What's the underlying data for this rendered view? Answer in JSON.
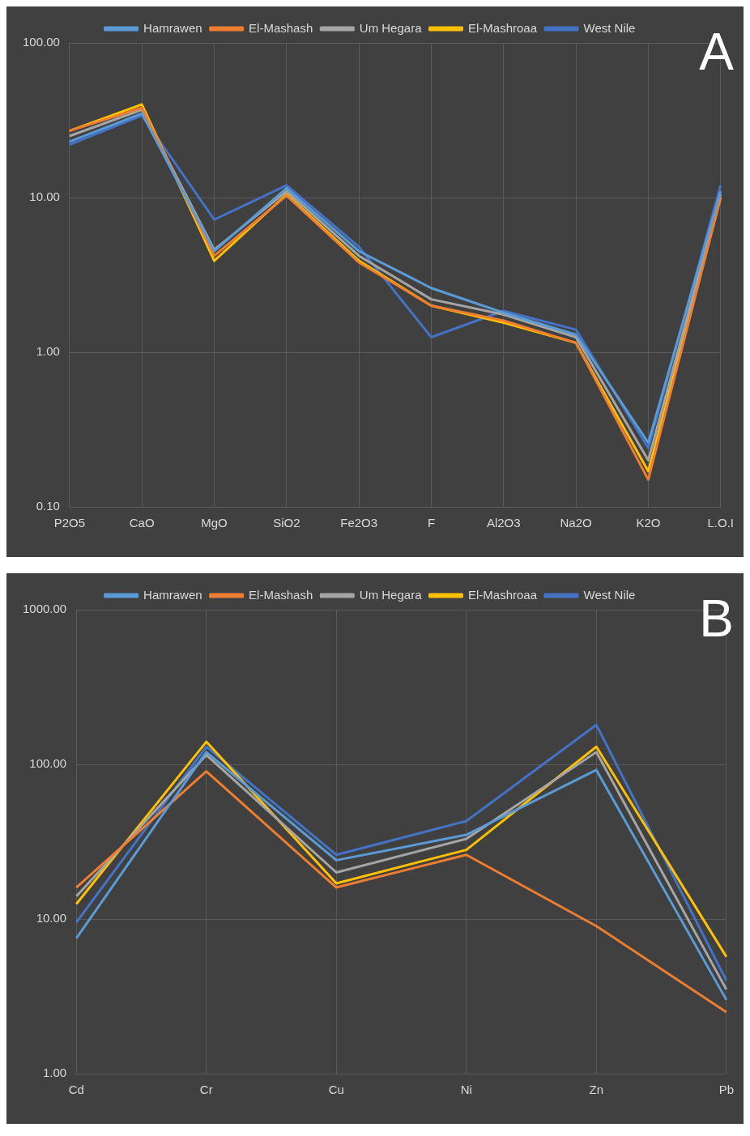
{
  "chart_data": [
    {
      "type": "line",
      "annotations": [
        "A"
      ],
      "categories": [
        "P2O5",
        "CaO",
        "MgO",
        "SiO2",
        "Fe2O3",
        "F",
        "Al2O3",
        "Na2O",
        "K2O",
        "L.O.I"
      ],
      "series": [
        {
          "name": "Hamrawen",
          "color": "#5b9bd5",
          "values": [
            23,
            35,
            4.5,
            11.5,
            4.5,
            2.6,
            1.8,
            1.3,
            0.26,
            11
          ]
        },
        {
          "name": "El-Mashash",
          "color": "#ed7d31",
          "values": [
            27,
            38,
            4.2,
            10.3,
            3.8,
            2.0,
            1.6,
            1.15,
            0.15,
            10
          ]
        },
        {
          "name": "Um Hegara",
          "color": "#a5a5a5",
          "values": [
            25,
            37,
            4.6,
            11,
            4.2,
            2.2,
            1.75,
            1.25,
            0.2,
            10.5
          ]
        },
        {
          "name": "El-Mashroaa",
          "color": "#ffc000",
          "values": [
            27,
            40,
            3.9,
            10.5,
            3.9,
            2.0,
            1.55,
            1.15,
            0.17,
            10
          ]
        },
        {
          "name": "West Nile",
          "color": "#4472c4",
          "values": [
            22,
            34,
            7.2,
            12,
            4.8,
            1.25,
            1.85,
            1.4,
            0.24,
            12
          ]
        }
      ],
      "log": "y",
      "ylim": [
        0.1,
        100
      ],
      "yticks": [
        {
          "value": 0.1,
          "label": "0.10"
        },
        {
          "value": 1,
          "label": "1.00"
        },
        {
          "value": 10,
          "label": "10.00"
        },
        {
          "value": 100,
          "label": "100.00"
        }
      ],
      "grid": true,
      "legend": "top"
    },
    {
      "type": "line",
      "annotations": [
        "B"
      ],
      "categories": [
        "Cd",
        "Cr",
        "Cu",
        "Ni",
        "Zn",
        "Pb"
      ],
      "series": [
        {
          "name": "Hamrawen",
          "color": "#5b9bd5",
          "values": [
            7.5,
            120,
            24,
            35,
            92,
            3
          ]
        },
        {
          "name": "El-Mashash",
          "color": "#ed7d31",
          "values": [
            16,
            90,
            16,
            26,
            9,
            2.5
          ]
        },
        {
          "name": "Um Hegara",
          "color": "#a5a5a5",
          "values": [
            14,
            115,
            20,
            33,
            120,
            3.5
          ]
        },
        {
          "name": "El-Mashroaa",
          "color": "#ffc000",
          "values": [
            12.5,
            140,
            17,
            28,
            130,
            5.7
          ]
        },
        {
          "name": "West Nile",
          "color": "#4472c4",
          "values": [
            9.5,
            130,
            26,
            43,
            180,
            4
          ]
        }
      ],
      "log": "y",
      "ylim": [
        1,
        1000
      ],
      "yticks": [
        {
          "value": 1,
          "label": "1.00"
        },
        {
          "value": 10,
          "label": "10.00"
        },
        {
          "value": 100,
          "label": "100.00"
        },
        {
          "value": 1000,
          "label": "1000.00"
        }
      ],
      "grid": true,
      "legend": "top"
    }
  ]
}
